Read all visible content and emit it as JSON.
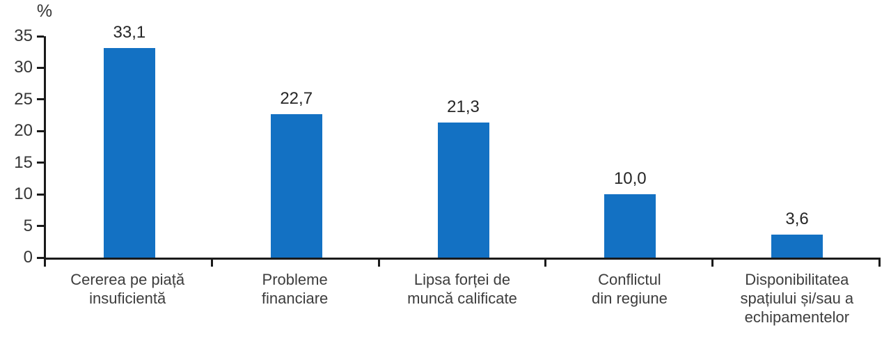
{
  "chart_data": {
    "type": "bar",
    "title": "",
    "unit_label": "%",
    "xlabel": "",
    "ylabel": "%",
    "ylim": [
      0,
      35
    ],
    "y_ticks": [
      0,
      5,
      10,
      15,
      20,
      25,
      30,
      35
    ],
    "grid": false,
    "legend": false,
    "categories": [
      "Cererea pe piață insuficientă",
      "Probleme financiare",
      "Lipsa forței de muncă calificate",
      "Conflictul din regiune",
      "Disponibilitatea spațiului și/sau a echipamentelor"
    ],
    "category_lines": [
      [
        "Cererea pe piață",
        "insuficientă"
      ],
      [
        "Probleme",
        "financiare"
      ],
      [
        "Lipsa forței de",
        "muncă calificate"
      ],
      [
        "Conflictul",
        "din regiune"
      ],
      [
        "Disponibilitatea",
        "spațiului și/sau a",
        "echipamentelor"
      ]
    ],
    "values": [
      33.1,
      22.7,
      21.3,
      10.0,
      3.6
    ],
    "value_labels": [
      "33,1",
      "22,7",
      "21,3",
      "10,0",
      "3,6"
    ],
    "colors": {
      "bar": "#1371c3",
      "axis": "#1a1a1a",
      "value_text": "#262626",
      "tick_text": "#353535",
      "category_text": "#3d3d3d"
    }
  }
}
